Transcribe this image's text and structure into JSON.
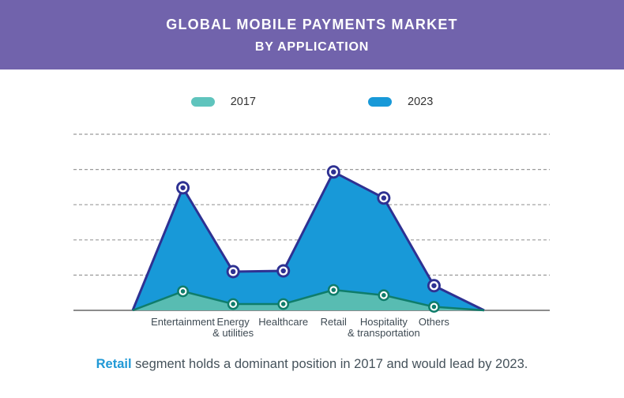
{
  "header": {
    "title": "GLOBAL MOBILE PAYMENTS MARKET",
    "subtitle": "BY APPLICATION"
  },
  "colors": {
    "header_purple": "#7163ac",
    "accent_blue": "#2199d6",
    "grid": "#9a9a9a",
    "axis": "#8c8c8c",
    "caption_text": "#45525b",
    "x_label_text": "#3e4a53"
  },
  "chart_data": {
    "type": "area",
    "title": "GLOBAL MOBILE PAYMENTS MARKET BY APPLICATION",
    "categories": [
      {
        "label": "Entertainment",
        "lines": [
          "Entertainment"
        ]
      },
      {
        "label": "Energy & utilities",
        "lines": [
          "Energy",
          "& utilities"
        ]
      },
      {
        "label": "Healthcare",
        "lines": [
          "Healthcare"
        ]
      },
      {
        "label": "Retail",
        "lines": [
          "Retail"
        ]
      },
      {
        "label": "Hospitality & transportation",
        "lines": [
          "Hospitality",
          "& transportation"
        ]
      },
      {
        "label": "Others",
        "lines": [
          "Others"
        ]
      }
    ],
    "series": [
      {
        "name": "2017",
        "fill": "#58bcb2",
        "line": "#0f7d6b",
        "legend_color": "#5fc4bd",
        "values": [
          0.54,
          0.18,
          0.18,
          0.58,
          0.43,
          0.1
        ]
      },
      {
        "name": "2023",
        "fill": "#1899d8",
        "line": "#2e3192",
        "legend_color": "#1899d8",
        "values": [
          3.48,
          1.1,
          1.12,
          3.93,
          3.19,
          0.7
        ]
      }
    ],
    "xlabel": "",
    "ylabel": "",
    "ylim": [
      0,
      5.5
    ],
    "gridlines": 5,
    "grid_style": "dashed",
    "y_tick_labels_visible": false,
    "legend_position": "top"
  },
  "caption": {
    "highlight": "Retail",
    "rest": " segment holds a dominant position in 2017 and would lead by 2023."
  }
}
